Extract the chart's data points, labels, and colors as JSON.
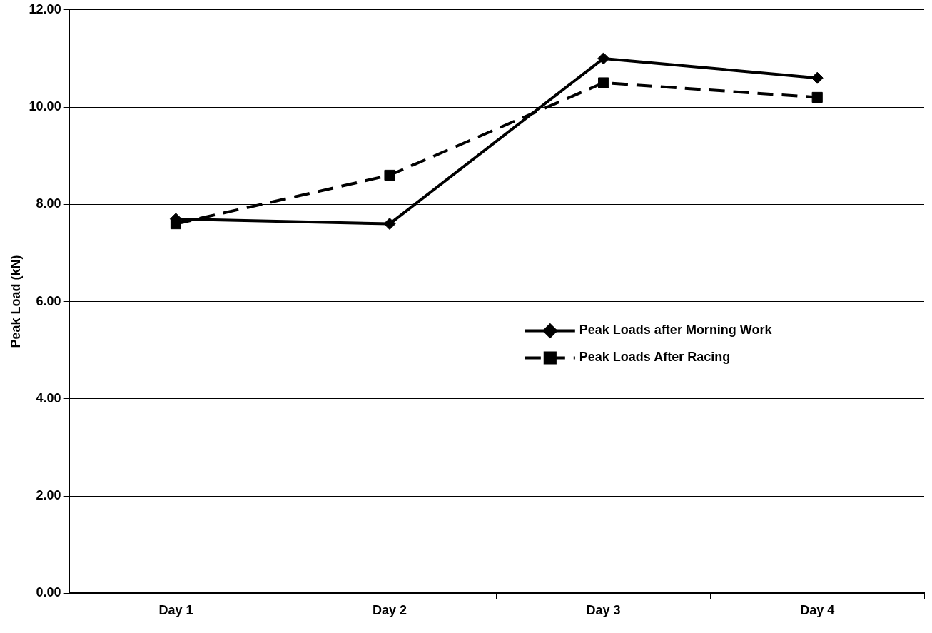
{
  "chart_data": {
    "type": "line",
    "ylabel": "Peak Load (kN)",
    "categories": [
      "Day 1",
      "Day 2",
      "Day 3",
      "Day 4"
    ],
    "series": [
      {
        "name": "Peak Loads after Morning Work",
        "color": "#000000",
        "values": [
          7.7,
          7.6,
          11.0,
          10.6
        ],
        "marker": "diamond",
        "line_style": "solid"
      },
      {
        "name": "Peak Loads After Racing",
        "color": "#000000",
        "values": [
          7.6,
          8.6,
          10.5,
          10.2
        ],
        "marker": "square",
        "line_style": "dashed"
      }
    ],
    "ylim": [
      0,
      12
    ],
    "yticks": [
      {
        "value": 0,
        "label": "0.00"
      },
      {
        "value": 2,
        "label": "2.00"
      },
      {
        "value": 4,
        "label": "4.00"
      },
      {
        "value": 6,
        "label": "6.00"
      },
      {
        "value": 8,
        "label": "8.00"
      },
      {
        "value": 10,
        "label": "10.00"
      },
      {
        "value": 12,
        "label": "12.00"
      }
    ],
    "grid": "y",
    "legend": "right"
  }
}
